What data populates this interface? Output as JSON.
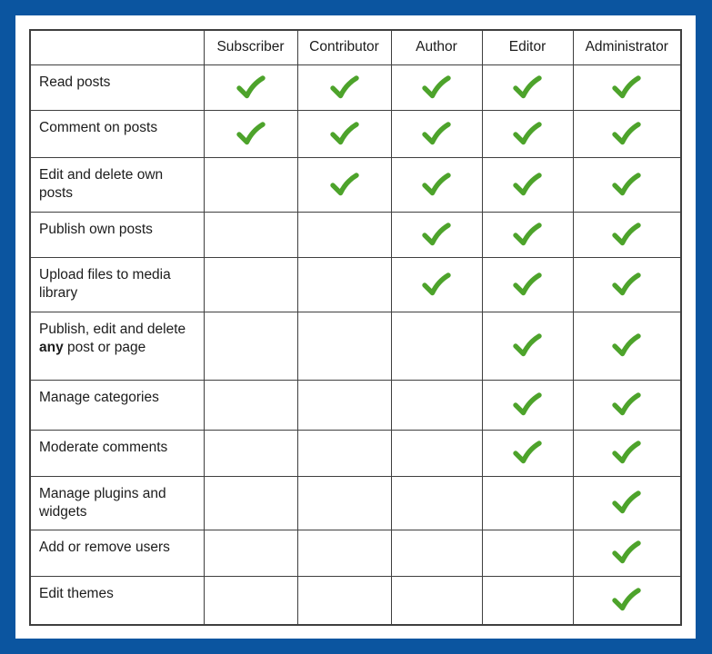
{
  "colors": {
    "frame_blue": "#0b55a0",
    "panel_white": "#ffffff",
    "grid_border": "#3f3f3f",
    "text_color": "#1c1c1c",
    "check_green": "#4da32b"
  },
  "icons": {
    "check": "checkmark-icon"
  },
  "chart_data": {
    "type": "table",
    "title": "",
    "corner_header": "",
    "columns": [
      "Subscriber",
      "Contributor",
      "Author",
      "Editor",
      "Administrator"
    ],
    "rows": [
      {
        "capability": "Read posts",
        "checks": [
          true,
          true,
          true,
          true,
          true
        ]
      },
      {
        "capability": "Comment on posts",
        "checks": [
          true,
          true,
          true,
          true,
          true
        ]
      },
      {
        "capability": "Edit and delete own posts",
        "checks": [
          false,
          true,
          true,
          true,
          true
        ]
      },
      {
        "capability": "Publish own posts",
        "checks": [
          false,
          false,
          true,
          true,
          true
        ]
      },
      {
        "capability": "Upload files to media library",
        "checks": [
          false,
          false,
          true,
          true,
          true
        ]
      },
      {
        "capability": "Publish, edit and delete any post or page",
        "rich": [
          {
            "text": "Publish, edit and delete "
          },
          {
            "text": "any",
            "bold": true
          },
          {
            "text": " post or page"
          }
        ],
        "checks": [
          false,
          false,
          false,
          true,
          true
        ]
      },
      {
        "capability": "Manage categories",
        "checks": [
          false,
          false,
          false,
          true,
          true
        ]
      },
      {
        "capability": "Moderate comments",
        "checks": [
          false,
          false,
          false,
          true,
          true
        ]
      },
      {
        "capability": "Manage plugins and widgets",
        "checks": [
          false,
          false,
          false,
          false,
          true
        ]
      },
      {
        "capability": "Add or remove users",
        "checks": [
          false,
          false,
          false,
          false,
          true
        ]
      },
      {
        "capability": "Edit themes",
        "checks": [
          false,
          false,
          false,
          false,
          true
        ]
      }
    ]
  }
}
